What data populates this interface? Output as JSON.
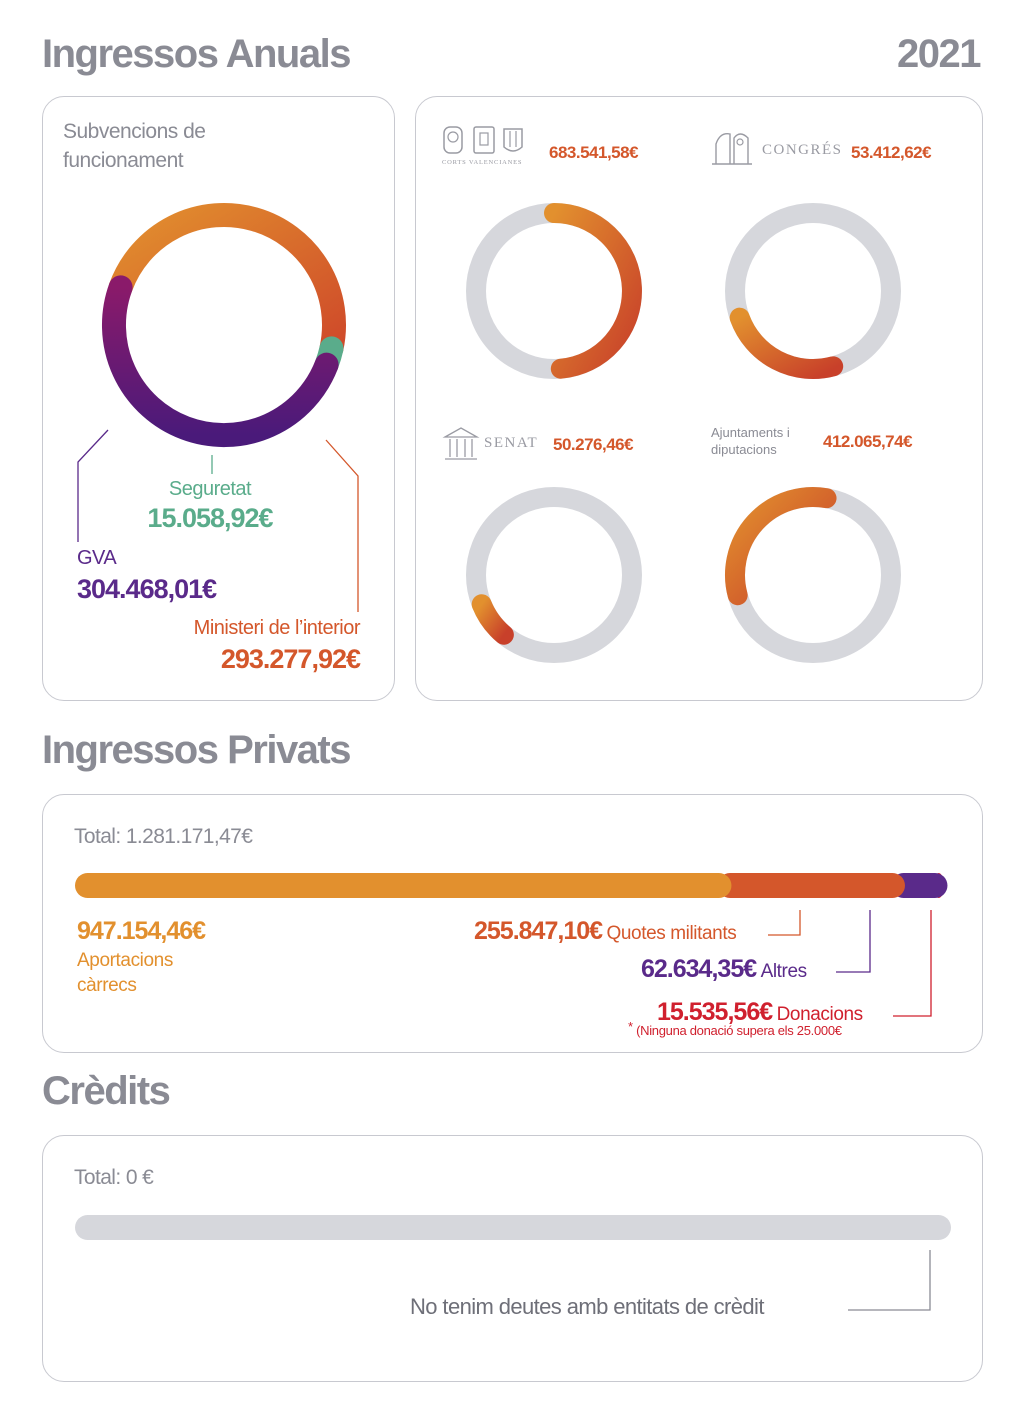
{
  "header": {
    "title": "Ingressos Anuals",
    "year": "2021"
  },
  "subsidies": {
    "title": "Subvencions de funcionament",
    "title_line1": "Subvencions de",
    "title_line2": "funcionament",
    "chart_data": {
      "type": "pie",
      "title": "Subvencions de funcionament",
      "segments": [
        {
          "name": "Ministeri de l'interior",
          "value": 293277.92,
          "label": "Ministeri de l’interior",
          "amount": "293.277,92€",
          "color": "#d4572b"
        },
        {
          "name": "Seguretat",
          "value": 15058.92,
          "label": "Seguretat",
          "amount": "15.058,92€",
          "color": "#5aac8b"
        },
        {
          "name": "GVA",
          "value": 304468.01,
          "label": "GVA",
          "amount": "304.468,01€",
          "color": "#6a1a6a"
        }
      ]
    }
  },
  "institutions": {
    "chart_data": [
      {
        "type": "pie",
        "name": "Corts Valencianes",
        "logo_text": "CORTS VALENCIANES",
        "amount": "683.541,58€",
        "fraction": 0.5,
        "track_color": "#d6d7dc"
      },
      {
        "type": "pie",
        "name": "Congrés",
        "logo_text": "CONGRÉS",
        "amount": "53.412,62€",
        "fraction": 0.12,
        "track_color": "#d6d7dc"
      },
      {
        "type": "pie",
        "name": "Senat",
        "logo_text": "SENAT",
        "amount": "50.276,46€",
        "fraction": 0.05,
        "track_color": "#d6d7dc"
      },
      {
        "type": "pie",
        "name": "Ajuntaments i diputacions",
        "logo_text": "Ajuntaments i diputacions",
        "logo_line1": "Ajuntaments i",
        "logo_line2": "diputacions",
        "amount": "412.065,74€",
        "fraction": 0.28,
        "track_color": "#d6d7dc"
      }
    ]
  },
  "private": {
    "title": "Ingressos Privats",
    "total": "Total: 1.281.171,47€",
    "note": "(Ninguna donació supera els 25.000€",
    "note_star": "*",
    "chart_data": {
      "type": "bar",
      "orientation": "horizontal-stacked",
      "total": 1281171.47,
      "series": [
        {
          "name": "Aportacions càrrecs",
          "label_line1": "Aportacions",
          "label_line2": "càrrecs",
          "value": 947154.46,
          "amount": "947.154,46€",
          "color": "#e2902e"
        },
        {
          "name": "Quotes militants",
          "value": 255847.1,
          "amount": "255.847,10€",
          "color": "#d4572b"
        },
        {
          "name": "Altres",
          "value": 62634.35,
          "amount": "62.634,35€",
          "color": "#5a2a8a"
        },
        {
          "name": "Donacions",
          "value": 15535.56,
          "amount": "15.535,56€",
          "color": "#d0202e"
        }
      ]
    }
  },
  "credits": {
    "title": "Crèdits",
    "total": "Total: 0 €",
    "message": "No tenim deutes amb entitats de crèdit",
    "chart_data": {
      "type": "bar",
      "orientation": "horizontal",
      "value": 0,
      "track_color": "#d6d7dc"
    }
  }
}
